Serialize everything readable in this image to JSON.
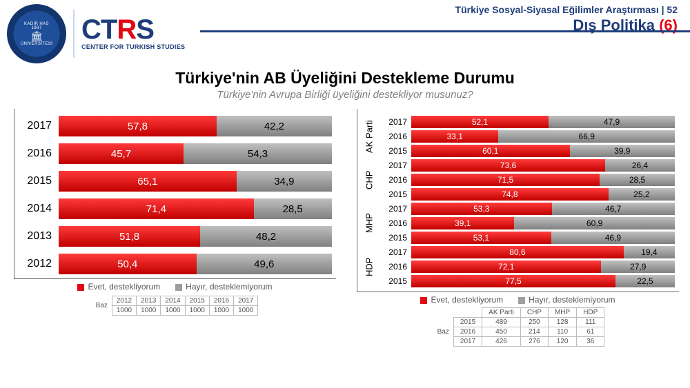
{
  "header": {
    "survey_title": "Türkiye Sosyal-Siyasal Eğilimler Araştırması",
    "page_number": "52",
    "section": "Dış Politika",
    "section_index": "(6)"
  },
  "logos": {
    "seal_top": "KADİR HAS",
    "seal_bottom": "ÜNİVERSİTESİ",
    "seal_year": "1997",
    "ctrs_main": "CTRS",
    "ctrs_sub": "CENTER FOR TURKISH STUDIES"
  },
  "title": {
    "main": "Türkiye'nin AB Üyeliğini Destekleme Durumu",
    "sub": "Türkiye'nin Avrupa Birliği üyeliğini destekliyor musunuz?"
  },
  "colors": {
    "yes": "#e30613",
    "no": "#9e9e9e",
    "brand_blue": "#1f3d7a",
    "brand_red": "#e30613",
    "grid": "#666666",
    "bg": "#ffffff"
  },
  "legend": {
    "yes": "Evet, destekliyorum",
    "no": "Hayır, desteklemiyorum"
  },
  "left_chart": {
    "type": "stacked-bar-horizontal",
    "rows": [
      {
        "year": "2017",
        "yes": "57,8",
        "no": "42,2",
        "yes_pct": 57.8,
        "no_pct": 42.2
      },
      {
        "year": "2016",
        "yes": "45,7",
        "no": "54,3",
        "yes_pct": 45.7,
        "no_pct": 54.3
      },
      {
        "year": "2015",
        "yes": "65,1",
        "no": "34,9",
        "yes_pct": 65.1,
        "no_pct": 34.9
      },
      {
        "year": "2014",
        "yes": "71,4",
        "no": "28,5",
        "yes_pct": 71.4,
        "no_pct": 28.5
      },
      {
        "year": "2013",
        "yes": "51,8",
        "no": "48,2",
        "yes_pct": 51.8,
        "no_pct": 48.2
      },
      {
        "year": "2012",
        "yes": "50,4",
        "no": "49,6",
        "yes_pct": 50.4,
        "no_pct": 49.6
      }
    ],
    "baz": {
      "label": "Baz",
      "years": [
        "2012",
        "2013",
        "2014",
        "2015",
        "2016",
        "2017"
      ],
      "values": [
        "1000",
        "1000",
        "1000",
        "1000",
        "1000",
        "1000"
      ]
    }
  },
  "right_chart": {
    "type": "stacked-bar-horizontal-grouped",
    "groups": [
      {
        "name": "AK Parti",
        "rows": [
          {
            "year": "2017",
            "yes": "52,1",
            "no": "47,9",
            "yes_pct": 52.1,
            "no_pct": 47.9
          },
          {
            "year": "2016",
            "yes": "33,1",
            "no": "66,9",
            "yes_pct": 33.1,
            "no_pct": 66.9
          },
          {
            "year": "2015",
            "yes": "60,1",
            "no": "39,9",
            "yes_pct": 60.1,
            "no_pct": 39.9
          }
        ]
      },
      {
        "name": "CHP",
        "rows": [
          {
            "year": "2017",
            "yes": "73,6",
            "no": "26,4",
            "yes_pct": 73.6,
            "no_pct": 26.4
          },
          {
            "year": "2016",
            "yes": "71,5",
            "no": "28,5",
            "yes_pct": 71.5,
            "no_pct": 28.5
          },
          {
            "year": "2015",
            "yes": "74,8",
            "no": "25,2",
            "yes_pct": 74.8,
            "no_pct": 25.2
          }
        ]
      },
      {
        "name": "MHP",
        "rows": [
          {
            "year": "2017",
            "yes": "53,3",
            "no": "46,7",
            "yes_pct": 53.3,
            "no_pct": 46.7
          },
          {
            "year": "2016",
            "yes": "39,1",
            "no": "60,9",
            "yes_pct": 39.1,
            "no_pct": 60.9
          },
          {
            "year": "2015",
            "yes": "53,1",
            "no": "46,9",
            "yes_pct": 53.1,
            "no_pct": 46.9
          }
        ]
      },
      {
        "name": "HDP",
        "rows": [
          {
            "year": "2017",
            "yes": "80,6",
            "no": "19,4",
            "yes_pct": 80.6,
            "no_pct": 19.4
          },
          {
            "year": "2016",
            "yes": "72,1",
            "no": "27,9",
            "yes_pct": 72.1,
            "no_pct": 27.9
          },
          {
            "year": "2015",
            "yes": "77,5",
            "no": "22,5",
            "yes_pct": 77.5,
            "no_pct": 22.5
          }
        ]
      }
    ],
    "baz": {
      "label": "Baz",
      "cols": [
        "AK Parti",
        "CHP",
        "MHP",
        "HDP"
      ],
      "years": [
        "2015",
        "2016",
        "2017"
      ],
      "values": [
        [
          "489",
          "250",
          "128",
          "111"
        ],
        [
          "450",
          "214",
          "110",
          "61"
        ],
        [
          "426",
          "276",
          "120",
          "36"
        ]
      ]
    }
  }
}
